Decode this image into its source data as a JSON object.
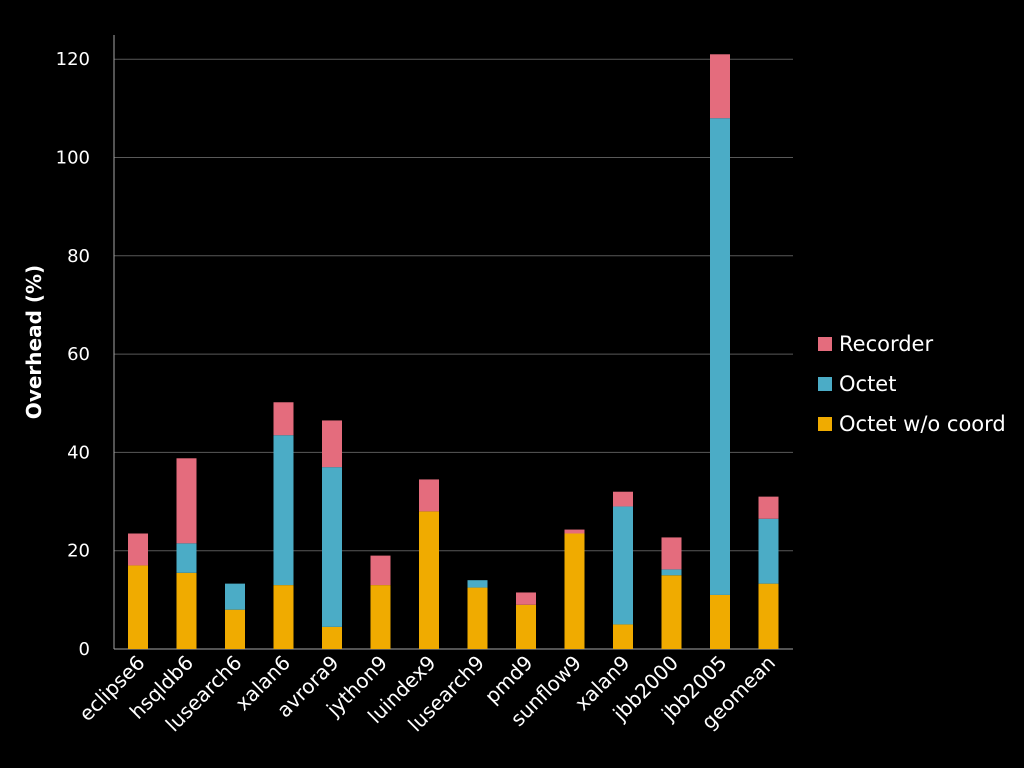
{
  "chart_data": {
    "type": "bar",
    "stacked": true,
    "ylabel": "Overhead (%)",
    "xlabel": "",
    "ylim": [
      0,
      125
    ],
    "yticks": [
      0,
      20,
      40,
      60,
      80,
      100,
      120
    ],
    "grid": true,
    "legend_position": "right",
    "categories": [
      "eclipse6",
      "hsqldb6",
      "lusearch6",
      "xalan6",
      "avrora9",
      "jython9",
      "luindex9",
      "lusearch9",
      "pmd9",
      "sunflow9",
      "xalan9",
      "jbb2000",
      "jbb2005",
      "geomean"
    ],
    "series": [
      {
        "name": "Octet w/o coord",
        "color": "#F0AB00",
        "values": [
          17,
          15.5,
          8,
          13,
          4.5,
          13,
          28,
          12.5,
          9,
          23.5,
          5,
          15,
          11,
          13.3
        ]
      },
      {
        "name": "Octet",
        "color": "#4BACC6",
        "values": [
          0,
          6,
          5.3,
          30.5,
          32.5,
          0,
          0,
          1.5,
          0,
          0,
          24,
          1.2,
          97,
          13.2
        ]
      },
      {
        "name": "Recorder",
        "color": "#E46C7D",
        "values": [
          6.5,
          17.3,
          0,
          6.7,
          9.5,
          6,
          6.5,
          0,
          2.5,
          0.8,
          3,
          6.5,
          13,
          4.5
        ]
      }
    ],
    "legend": [
      "Recorder",
      "Octet",
      "Octet w/o coord"
    ]
  }
}
